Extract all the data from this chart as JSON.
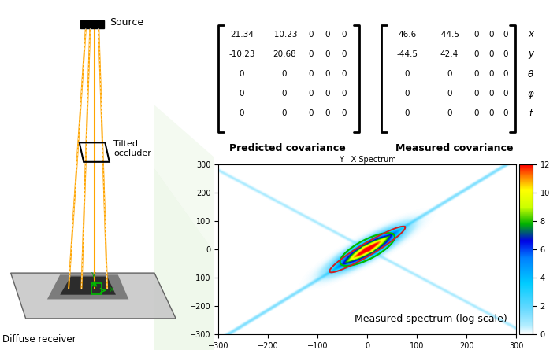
{
  "predicted_matrix": [
    [
      "21.34",
      "-10.23",
      "0",
      "0",
      "0"
    ],
    [
      "-10.23",
      "20.68",
      "0",
      "0",
      "0"
    ],
    [
      "0",
      "0",
      "0",
      "0",
      "0"
    ],
    [
      "0",
      "0",
      "0",
      "0",
      "0"
    ],
    [
      "0",
      "0",
      "0",
      "0",
      "0"
    ]
  ],
  "measured_matrix": [
    [
      "46.6",
      "-44.5",
      "0",
      "0",
      "0"
    ],
    [
      "-44.5",
      "42.4",
      "0",
      "0",
      "0"
    ],
    [
      "0",
      "0",
      "0",
      "0",
      "0"
    ],
    [
      "0",
      "0",
      "0",
      "0",
      "0"
    ],
    [
      "0",
      "0",
      "0",
      "0",
      "0"
    ]
  ],
  "row_labels": [
    "x",
    "y",
    "θ",
    "φ",
    "t"
  ],
  "predicted_label": "Predicted covariance",
  "measured_label": "Measured covariance",
  "spectrum_title": "Y - X Spectrum",
  "spectrum_annotation": "Measured spectrum (log scale)",
  "colorbar_min": 0,
  "colorbar_max": 12,
  "axis_ticks": [
    -300,
    -200,
    -100,
    0,
    100,
    200,
    300
  ],
  "predicted_bg": "#f4a0a0",
  "measured_bg": "#e8f5e8",
  "background_green": "#edf7e8",
  "orange_color": "#FFA500",
  "ellipse_green": "#00bb00",
  "ellipse_red": "#cc2222",
  "spectrum_tilt_deg": 47,
  "sigma_long": 55,
  "sigma_short": 14,
  "streak_sigma_perp": 3,
  "streak_amplitude": 0.12,
  "green_ellipse_a": 75,
  "green_ellipse_b": 28,
  "red_ellipse_a": 110,
  "red_ellipse_b": 18
}
